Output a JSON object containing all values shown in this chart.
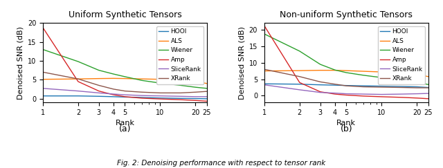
{
  "title_a": "Uniform Synthetic Tensors",
  "title_b": "Non-uniform Synthetic Tensors",
  "xlabel": "Rank",
  "ylabel": "Denoised SNR (dB)",
  "caption": "Fig. 2: Denoising performance with respect to tensor rank",
  "sublabel_a": "(a)",
  "sublabel_b": "(b)",
  "legend_labels": [
    "HOOI",
    "ALS",
    "Wiener",
    "Amp",
    "SliceRank",
    "XRank"
  ],
  "colors": {
    "HOOI": "#1f77b4",
    "ALS": "#ff7f0e",
    "Wiener": "#2ca02c",
    "Amp": "#d62728",
    "SliceRank": "#9467bd",
    "XRank": "#8c564b"
  },
  "ranks": [
    1,
    2,
    3,
    4,
    5,
    7,
    10,
    15,
    20,
    25
  ],
  "uniform": {
    "HOOI": [
      0.7,
      0.7,
      0.6,
      0.5,
      0.4,
      0.3,
      0.15,
      0.05,
      0.0,
      -0.05
    ],
    "ALS": [
      5.1,
      5.2,
      5.3,
      5.35,
      5.3,
      5.2,
      5.1,
      4.8,
      4.5,
      4.0
    ],
    "Wiener": [
      13.0,
      9.8,
      7.5,
      6.5,
      5.8,
      4.8,
      4.1,
      3.5,
      3.0,
      2.7
    ],
    "Amp": [
      18.8,
      4.5,
      2.0,
      1.0,
      0.5,
      0.1,
      -0.1,
      -0.3,
      -0.5,
      -0.7
    ],
    "SliceRank": [
      2.7,
      2.0,
      1.5,
      1.2,
      1.0,
      0.8,
      0.7,
      0.6,
      0.5,
      0.5
    ],
    "XRank": [
      7.0,
      5.2,
      3.5,
      2.5,
      2.0,
      1.7,
      1.5,
      1.5,
      1.7,
      1.9
    ]
  },
  "nonuniform": {
    "HOOI": [
      3.6,
      3.5,
      3.3,
      3.2,
      3.1,
      3.0,
      2.9,
      2.8,
      2.7,
      2.5
    ],
    "ALS": [
      7.5,
      7.6,
      7.7,
      7.7,
      7.6,
      7.4,
      7.2,
      6.8,
      6.4,
      5.8
    ],
    "Wiener": [
      18.7,
      13.5,
      9.5,
      7.8,
      7.0,
      6.2,
      5.5,
      4.7,
      4.0,
      3.4
    ],
    "Amp": [
      21.2,
      4.0,
      1.2,
      0.5,
      0.2,
      -0.1,
      -0.3,
      -0.5,
      -0.7,
      -0.9
    ],
    "SliceRank": [
      3.3,
      1.8,
      1.0,
      0.8,
      0.6,
      0.5,
      0.4,
      0.5,
      0.6,
      0.7
    ],
    "XRank": [
      8.0,
      5.8,
      4.2,
      3.5,
      3.0,
      2.7,
      2.6,
      2.5,
      2.4,
      2.4
    ]
  }
}
